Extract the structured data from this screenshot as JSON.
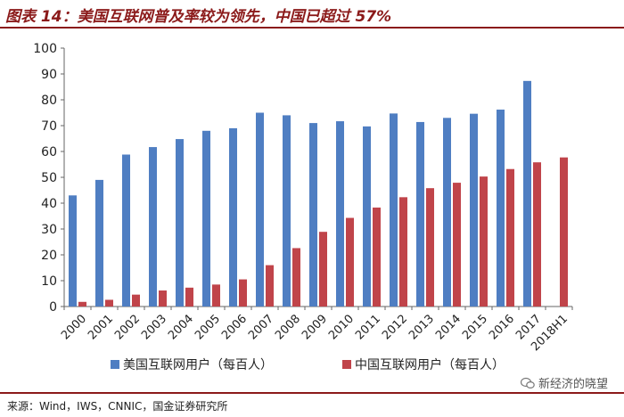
{
  "title": "图表 14：美国互联网普及率较为领先，中国已超过 57%",
  "source": "来源：Wind，IWS，CNNIC，国金证券研究所",
  "watermark": "新经济的晓望",
  "colors": {
    "us": "#4f7ec2",
    "cn": "#c0444a",
    "accent": "#8b1a1a"
  },
  "chart_data": {
    "type": "bar",
    "categories": [
      "2000",
      "2001",
      "2002",
      "2003",
      "2004",
      "2005",
      "2006",
      "2007",
      "2008",
      "2009",
      "2010",
      "2011",
      "2012",
      "2013",
      "2014",
      "2015",
      "2016",
      "2017",
      "2018H1"
    ],
    "series": [
      {
        "name": "美国互联网用户（每百人）",
        "values": [
          43,
          49,
          58.8,
          61.7,
          64.8,
          68,
          69,
          75,
          74,
          71,
          71.7,
          69.7,
          74.7,
          71.4,
          73,
          74.6,
          76.2,
          87.3,
          null
        ]
      },
      {
        "name": "中国互联网用户（每百人）",
        "values": [
          1.8,
          2.6,
          4.6,
          6.2,
          7.3,
          8.5,
          10.5,
          16,
          22.6,
          28.9,
          34.3,
          38.3,
          42.3,
          45.8,
          47.9,
          50.3,
          53.2,
          55.8,
          57.7
        ]
      }
    ],
    "ylim": [
      0,
      100
    ],
    "yticks": [
      0,
      10,
      20,
      30,
      40,
      50,
      60,
      70,
      80,
      90,
      100
    ],
    "legend_position": "bottom"
  }
}
